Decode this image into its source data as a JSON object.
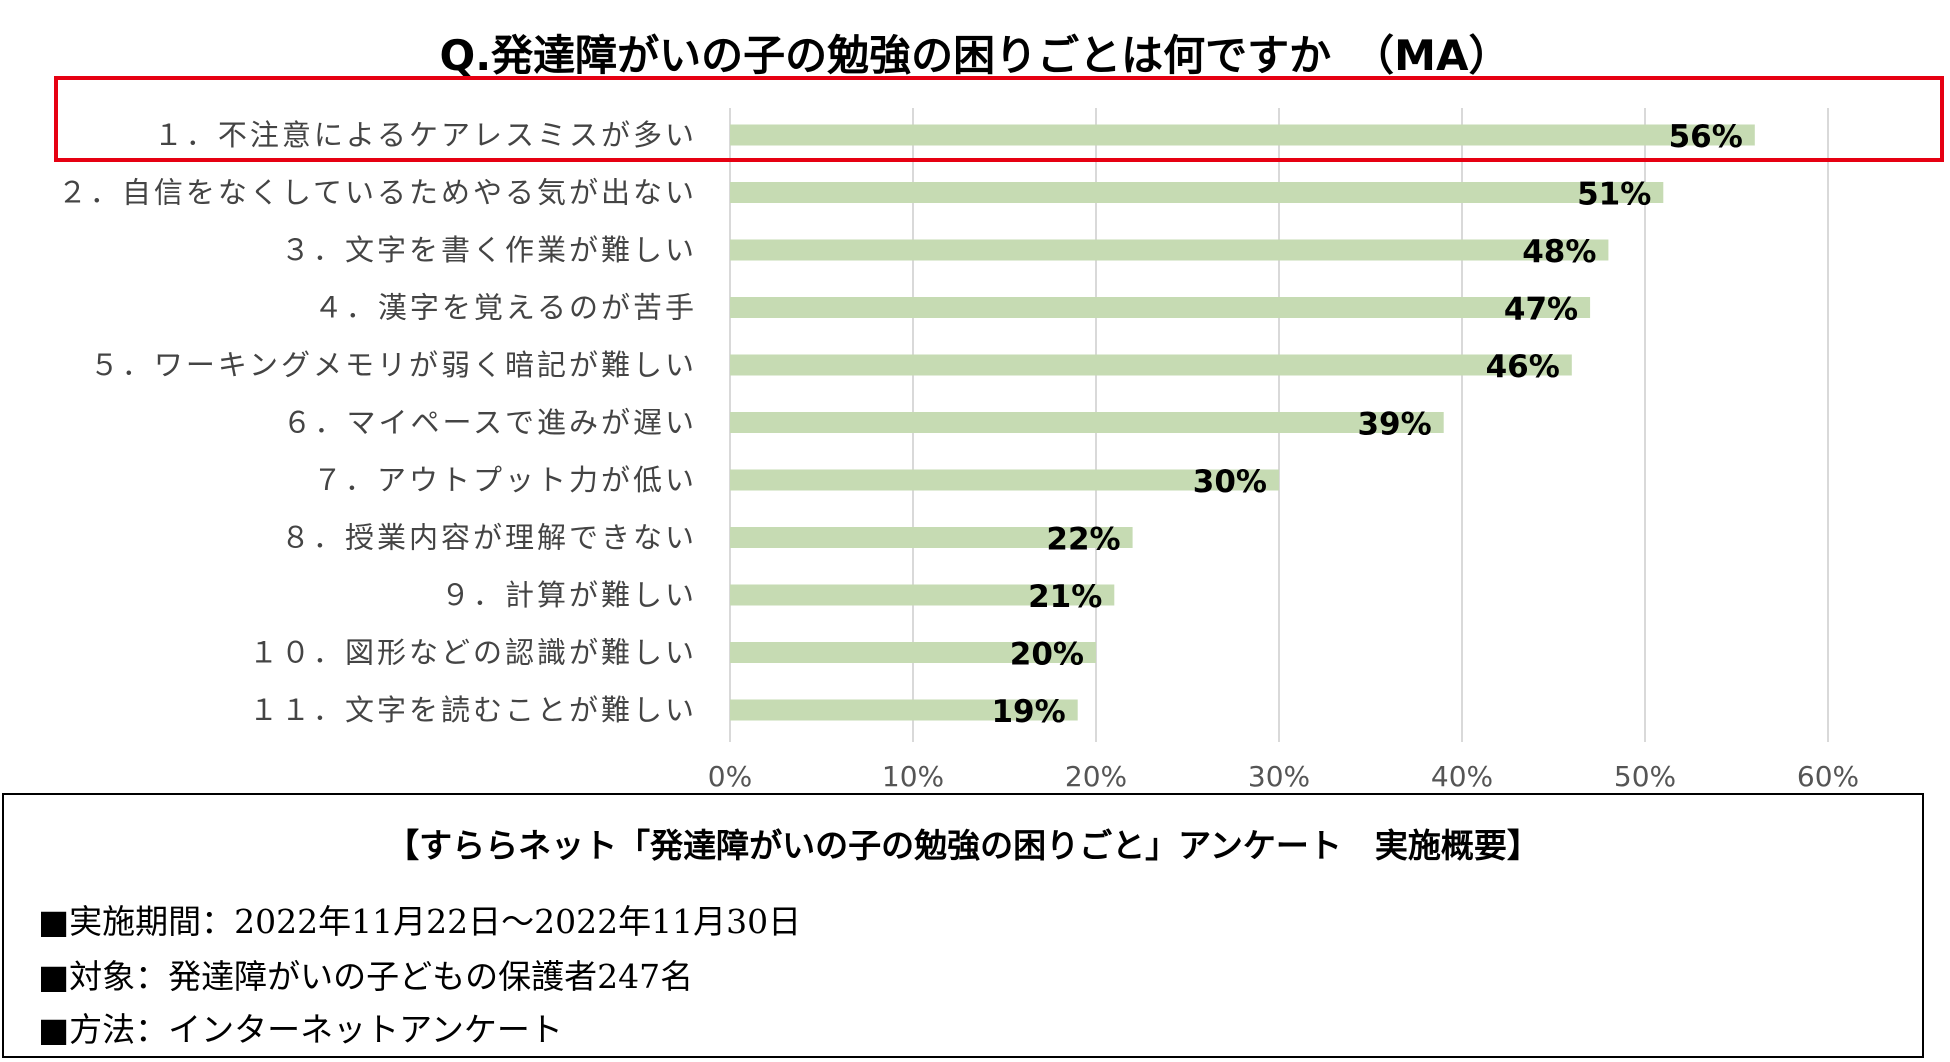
{
  "chart_data": {
    "type": "bar",
    "orientation": "horizontal",
    "title": "Q.発達障がいの子の勉強の困りごとは何ですか　（MA）",
    "categories": [
      "１．不注意によるケアレスミスが多い",
      "２．自信をなくしているためやる気が出ない",
      "３．文字を書く作業が難しい",
      "４．漢字を覚えるのが苦手",
      "５．ワーキングメモリが弱く暗記が難しい",
      "６．マイペースで進みが遅い",
      "７．アウトプット力が低い",
      "８．授業内容が理解できない",
      "９．計算が難しい",
      "１０．図形などの認識が難しい",
      "１１．文字を読むことが難しい"
    ],
    "values": [
      56,
      51,
      48,
      47,
      46,
      39,
      30,
      22,
      21,
      20,
      19
    ],
    "value_labels": [
      "56%",
      "51%",
      "48%",
      "47%",
      "46%",
      "39%",
      "30%",
      "22%",
      "21%",
      "20%",
      "19%"
    ],
    "xlim": [
      0,
      60
    ],
    "x_ticks": [
      "0%",
      "10%",
      "20%",
      "30%",
      "40%",
      "50%",
      "60%"
    ],
    "grid": true,
    "bar_color": "#c6dbb3",
    "highlight_color": "#e60012",
    "highlighted_category_index": 0
  },
  "survey": {
    "title": "【すららネット「発達障がいの子の勉強の困りごと」アンケート　実施概要】",
    "period": "■実施期間：2022年11月22日～2022年11月30日",
    "target": "■対象：発達障がいの子どもの保護者247名",
    "method": "■方法：インターネットアンケート"
  }
}
